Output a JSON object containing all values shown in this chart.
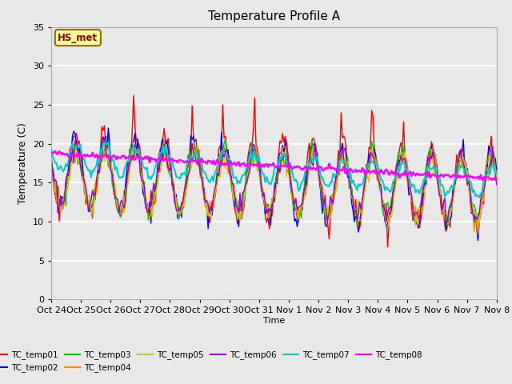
{
  "title": "Temperature Profile A",
  "xlabel": "Time",
  "ylabel": "Temperature (C)",
  "ylim": [
    0,
    35
  ],
  "annotation_text": "HS_met",
  "annotation_color": "#8B0000",
  "annotation_bg": "#FFFF99",
  "annotation_border": "#8B6914",
  "series_colors": {
    "TC_temp01": "#FF0000",
    "TC_temp02": "#0000FF",
    "TC_temp03": "#00CC00",
    "TC_temp04": "#FF8C00",
    "TC_temp05": "#CCCC00",
    "TC_temp06": "#9900CC",
    "TC_temp07": "#00CCCC",
    "TC_temp08": "#FF00FF"
  },
  "background_color": "#E8E8E8",
  "grid_color": "#FFFFFF",
  "x_tick_labels": [
    "Oct 24",
    "Oct 25",
    "Oct 26",
    "Oct 27",
    "Oct 28",
    "Oct 29",
    "Oct 30",
    "Oct 31",
    "Nov 1",
    "Nov 2",
    "Nov 3",
    "Nov 4",
    "Nov 5",
    "Nov 6",
    "Nov 7",
    "Nov 8"
  ],
  "n_points": 336,
  "figsize": [
    6.4,
    4.8
  ],
  "dpi": 100
}
